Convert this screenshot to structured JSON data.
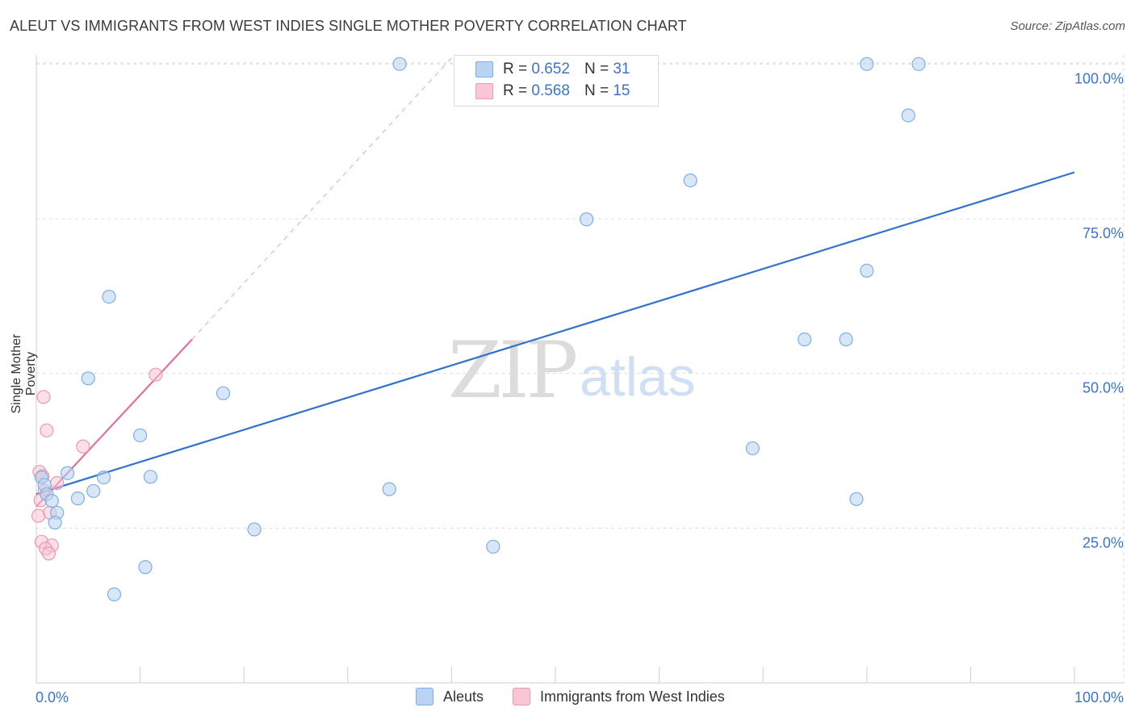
{
  "title": "ALEUT VS IMMIGRANTS FROM WEST INDIES SINGLE MOTHER POVERTY CORRELATION CHART",
  "source": "Source: ZipAtlas.com",
  "watermark": {
    "zip": "ZIP",
    "atlas": "atlas"
  },
  "legend": {
    "r_label": "R =",
    "n_label": "N =",
    "rows": [
      {
        "r": "0.652",
        "n": "31"
      },
      {
        "r": "0.568",
        "n": "15"
      }
    ]
  },
  "colors": {
    "aleut_fill": "#b8d3f3",
    "aleut_stroke": "#7eaee6",
    "aleut_line": "#2f72cf",
    "wi_fill": "#f8c6d4",
    "wi_stroke": "#ef98b2",
    "wi_line": "#e0709a",
    "axis_text": "#3b74c9",
    "grid": "#dddddd"
  },
  "chart_data": {
    "type": "scatter",
    "xlabel": "",
    "ylabel": "Single Mother Poverty",
    "x_tick_labels": [
      "0.0%",
      "100.0%"
    ],
    "y_tick_labels": [
      "25.0%",
      "50.0%",
      "75.0%",
      "100.0%"
    ],
    "xlim": [
      0,
      100
    ],
    "ylim": [
      0,
      102
    ],
    "y_grid": [
      25,
      50,
      75,
      100
    ],
    "series": [
      {
        "name": "Aleuts",
        "points": [
          [
            35,
            100
          ],
          [
            80,
            100
          ],
          [
            85,
            100
          ],
          [
            84,
            91.7
          ],
          [
            63,
            81.2
          ],
          [
            53,
            74.9
          ],
          [
            80,
            66.6
          ],
          [
            7,
            62.4
          ],
          [
            74,
            55.5
          ],
          [
            78,
            55.5
          ],
          [
            5,
            49.2
          ],
          [
            18,
            46.8
          ],
          [
            10,
            40
          ],
          [
            69,
            37.9
          ],
          [
            3,
            33.9
          ],
          [
            0.5,
            33.2
          ],
          [
            6.5,
            33.2
          ],
          [
            11,
            33.3
          ],
          [
            0.8,
            32
          ],
          [
            5.5,
            31
          ],
          [
            34,
            31.3
          ],
          [
            1,
            30.5
          ],
          [
            4,
            29.8
          ],
          [
            1.5,
            29.4
          ],
          [
            79,
            29.7
          ],
          [
            2,
            27.5
          ],
          [
            21,
            24.8
          ],
          [
            1.8,
            25.9
          ],
          [
            44,
            22
          ],
          [
            10.5,
            18.7
          ],
          [
            7.5,
            14.3
          ]
        ],
        "trend": {
          "x0": 0,
          "y0": 30.5,
          "x1": 100,
          "y1": 82.5
        }
      },
      {
        "name": "Immigrants from West Indies",
        "points": [
          [
            11.5,
            49.8
          ],
          [
            0.7,
            46.2
          ],
          [
            1,
            40.8
          ],
          [
            4.5,
            38.2
          ],
          [
            0.3,
            34.1
          ],
          [
            0.6,
            33.4
          ],
          [
            2,
            32.3
          ],
          [
            0.8,
            31
          ],
          [
            0.4,
            29.5
          ],
          [
            1.3,
            27.5
          ],
          [
            0.2,
            27
          ],
          [
            0.5,
            22.8
          ],
          [
            1.5,
            22.2
          ],
          [
            0.9,
            21.7
          ],
          [
            1.2,
            20.9
          ]
        ],
        "trend": {
          "x0": 0,
          "y0": 28.5,
          "x1": 15,
          "y1": 55.5
        },
        "trend_ext": {
          "x0": 15,
          "y0": 55.5,
          "x1": 40,
          "y1": 101
        }
      }
    ]
  },
  "bottom_legend": [
    "Aleuts",
    "Immigrants from West Indies"
  ]
}
